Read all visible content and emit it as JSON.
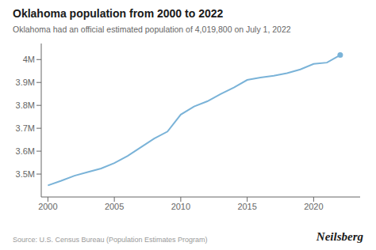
{
  "chart_data": {
    "type": "line",
    "title": "Oklahoma population from 2000 to 2022",
    "subtitle": "Oklahoma had an official estimated population of 4,019,800 on July 1, 2022",
    "annotations": [
      "Source: U.S. Census Bureau (Population Estimates Program)",
      "Neilsberg"
    ],
    "x": [
      2000,
      2001,
      2002,
      2003,
      2004,
      2005,
      2006,
      2007,
      2008,
      2009,
      2010,
      2011,
      2012,
      2013,
      2014,
      2015,
      2016,
      2017,
      2018,
      2019,
      2020,
      2021,
      2022
    ],
    "values": [
      3450654,
      3470759,
      3492978,
      3508669,
      3524532,
      3547885,
      3579210,
      3617316,
      3654809,
      3685474,
      3759944,
      3795310,
      3817827,
      3849733,
      3878051,
      3910944,
      3921655,
      3929102,
      3940235,
      3956971,
      3980783,
      3986639,
      4019800
    ],
    "color": "#7ab3d8",
    "xlim": [
      1999.5,
      2023.5
    ],
    "ylim": [
      3400000,
      4070000
    ],
    "xticks": [
      2000,
      2005,
      2010,
      2015,
      2020
    ],
    "yticks": [
      {
        "value": 3500000,
        "label": "3.5M"
      },
      {
        "value": 3600000,
        "label": "3.6M"
      },
      {
        "value": 3700000,
        "label": "3.7M"
      },
      {
        "value": 3800000,
        "label": "3.8M"
      },
      {
        "value": 3900000,
        "label": "3.9M"
      },
      {
        "value": 4000000,
        "label": "4M"
      }
    ],
    "grid": false
  }
}
